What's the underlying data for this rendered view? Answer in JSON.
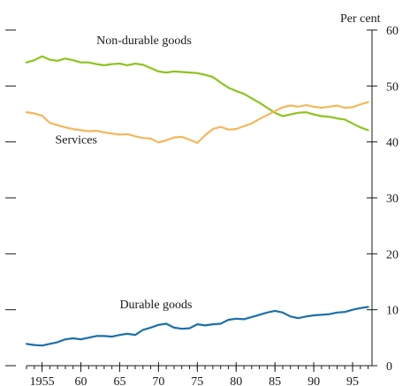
{
  "chart_data": {
    "type": "line",
    "unit_label": "Per cent",
    "xlim": [
      1953,
      1997.5
    ],
    "ylim": [
      0,
      60
    ],
    "y_ticks": [
      0,
      10,
      20,
      30,
      40,
      50,
      60
    ],
    "x_ticks": [
      1955,
      1960,
      1965,
      1970,
      1975,
      1980,
      1985,
      1990,
      1995
    ],
    "x_tick_labels": [
      "1955",
      "60",
      "65",
      "70",
      "75",
      "80",
      "85",
      "90",
      "95"
    ],
    "grid": false,
    "series": [
      {
        "name": "Non-durable goods",
        "color": "#8fc31f",
        "label_at": [
          1962,
          57.5
        ],
        "x": [
          1953,
          1954,
          1955,
          1956,
          1957,
          1958,
          1959,
          1960,
          1961,
          1962,
          1963,
          1964,
          1965,
          1966,
          1967,
          1968,
          1969,
          1970,
          1971,
          1972,
          1973,
          1974,
          1975,
          1976,
          1977,
          1978,
          1979,
          1980,
          1981,
          1982,
          1983,
          1984,
          1985,
          1986,
          1987,
          1988,
          1989,
          1990,
          1991,
          1992,
          1993,
          1994,
          1995,
          1996,
          1997
        ],
        "values": [
          54.2,
          54.6,
          55.3,
          54.7,
          54.5,
          54.9,
          54.6,
          54.2,
          54.2,
          53.9,
          53.7,
          53.9,
          54.0,
          53.7,
          54.0,
          53.8,
          53.2,
          52.6,
          52.4,
          52.6,
          52.5,
          52.4,
          52.3,
          52.0,
          51.6,
          50.6,
          49.7,
          49.1,
          48.6,
          47.8,
          47.0,
          46.1,
          45.2,
          44.6,
          44.9,
          45.2,
          45.3,
          44.9,
          44.6,
          44.5,
          44.2,
          44.0,
          43.3,
          42.6,
          42.1
        ]
      },
      {
        "name": "Services",
        "color": "#f5b75a",
        "label_at": [
          1956.7,
          39.7
        ],
        "x": [
          1953,
          1954,
          1955,
          1956,
          1957,
          1958,
          1959,
          1960,
          1961,
          1962,
          1963,
          1964,
          1965,
          1966,
          1967,
          1968,
          1969,
          1970,
          1971,
          1972,
          1973,
          1974,
          1975,
          1976,
          1977,
          1978,
          1979,
          1980,
          1981,
          1982,
          1983,
          1984,
          1985,
          1986,
          1987,
          1988,
          1989,
          1990,
          1991,
          1992,
          1993,
          1994,
          1995,
          1996,
          1997
        ],
        "values": [
          45.3,
          45.1,
          44.7,
          43.4,
          43.0,
          42.6,
          42.3,
          42.1,
          41.9,
          42.0,
          41.7,
          41.5,
          41.3,
          41.4,
          41.0,
          40.7,
          40.6,
          39.9,
          40.3,
          40.8,
          40.9,
          40.4,
          39.8,
          41.2,
          42.3,
          42.7,
          42.2,
          42.3,
          42.8,
          43.3,
          44.1,
          44.8,
          45.5,
          46.2,
          46.5,
          46.3,
          46.6,
          46.3,
          46.1,
          46.3,
          46.5,
          46.1,
          46.2,
          46.7,
          47.1
        ]
      },
      {
        "name": "Durable goods",
        "color": "#1a70a8",
        "label_at": [
          1965,
          10.3
        ],
        "x": [
          1953,
          1954,
          1955,
          1956,
          1957,
          1958,
          1959,
          1960,
          1961,
          1962,
          1963,
          1964,
          1965,
          1966,
          1967,
          1968,
          1969,
          1970,
          1971,
          1972,
          1973,
          1974,
          1975,
          1976,
          1977,
          1978,
          1979,
          1980,
          1981,
          1982,
          1983,
          1984,
          1985,
          1986,
          1987,
          1988,
          1989,
          1990,
          1991,
          1992,
          1993,
          1994,
          1995,
          1996,
          1997
        ],
        "values": [
          3.9,
          3.7,
          3.6,
          3.9,
          4.2,
          4.7,
          4.9,
          4.7,
          5.0,
          5.3,
          5.3,
          5.2,
          5.5,
          5.7,
          5.5,
          6.4,
          6.8,
          7.3,
          7.5,
          6.8,
          6.6,
          6.7,
          7.4,
          7.2,
          7.4,
          7.5,
          8.2,
          8.4,
          8.3,
          8.7,
          9.1,
          9.5,
          9.8,
          9.5,
          8.8,
          8.5,
          8.8,
          9.0,
          9.1,
          9.2,
          9.5,
          9.6,
          10.0,
          10.3,
          10.5
        ]
      }
    ]
  }
}
